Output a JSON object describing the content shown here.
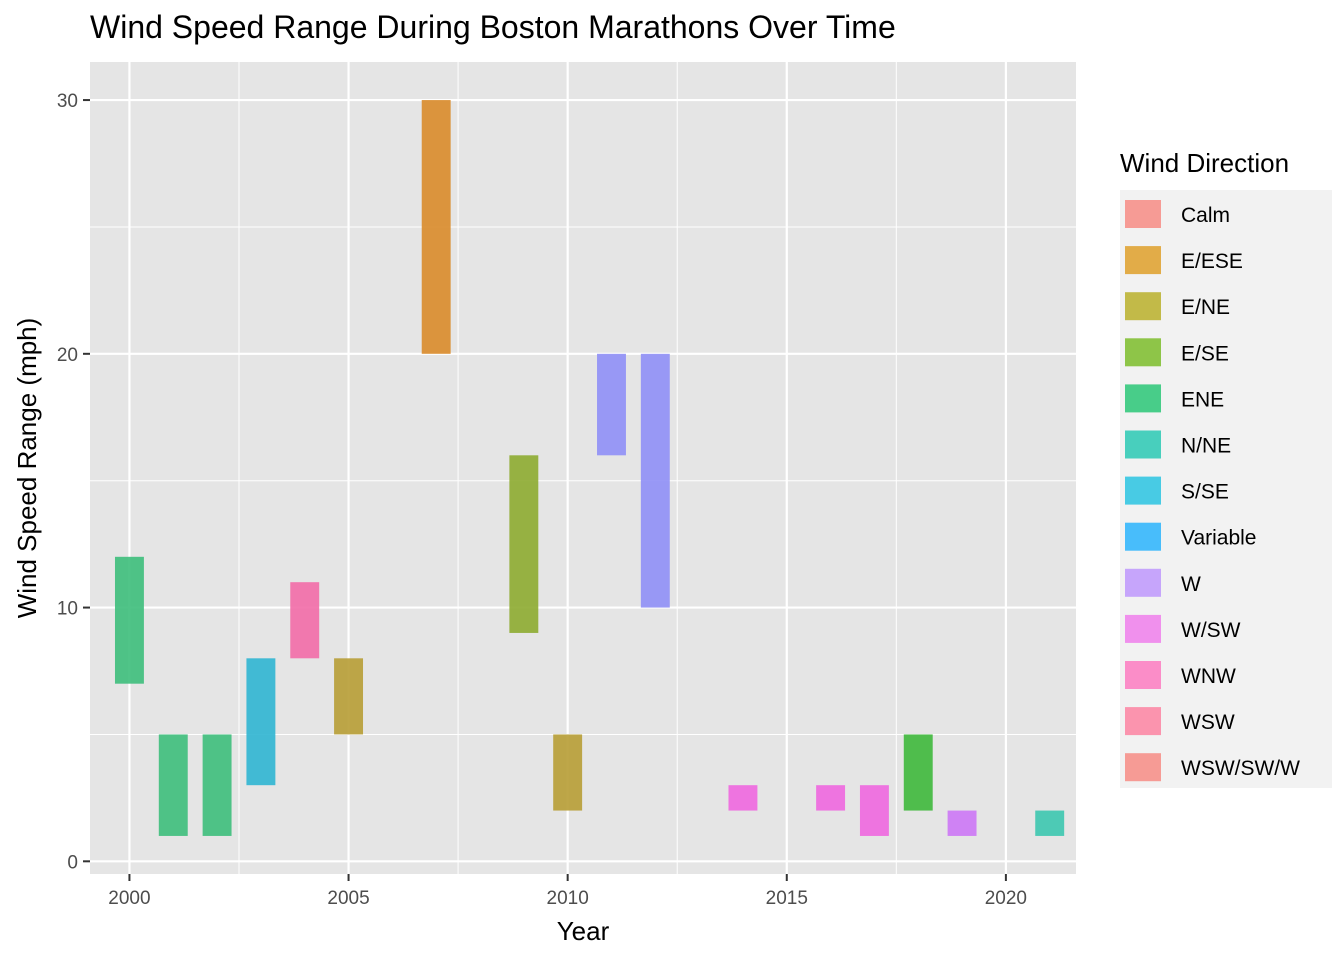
{
  "chart_data": {
    "type": "bar",
    "subtype": "floating-range",
    "title": "Wind Speed Range During Boston Marathons Over Time",
    "xlabel": "Year",
    "ylabel": "Wind Speed Range (mph)",
    "xlim": [
      1999.1,
      2021.6
    ],
    "ylim": [
      -0.5,
      31.5
    ],
    "xticks": [
      2000,
      2005,
      2010,
      2015,
      2020
    ],
    "yticks": [
      0,
      10,
      20,
      30
    ],
    "grid": true,
    "legend": {
      "title": "Wind Direction",
      "position": "right",
      "entries": [
        {
          "name": "Calm",
          "color": "#F8766D"
        },
        {
          "name": "E/ESE",
          "color": "#DB8E00"
        },
        {
          "name": "E/NE",
          "color": "#AEA200"
        },
        {
          "name": "E/SE",
          "color": "#64B200"
        },
        {
          "name": "ENE",
          "color": "#00BD5C"
        },
        {
          "name": "N/NE",
          "color": "#00C1A7"
        },
        {
          "name": "S/SE",
          "color": "#00BADE"
        },
        {
          "name": "Variable",
          "color": "#00A6FF"
        },
        {
          "name": "W",
          "color": "#B385FF"
        },
        {
          "name": "W/SW",
          "color": "#EF67EB"
        },
        {
          "name": "WNW",
          "color": "#FF63B6"
        },
        {
          "name": "WSW",
          "color": "#FF6C91"
        },
        {
          "name": "WSW/SW/W",
          "color": "#F8766D"
        }
      ]
    },
    "bars": [
      {
        "year": 2000,
        "low": 7,
        "high": 12,
        "direction": "N/NE",
        "color": "#3DBE7B"
      },
      {
        "year": 2001,
        "low": 1,
        "high": 5,
        "direction": "N/NE",
        "color": "#3DBE7B"
      },
      {
        "year": 2002,
        "low": 1,
        "high": 5,
        "direction": "N/NE",
        "color": "#3DBE7B"
      },
      {
        "year": 2003,
        "low": 3,
        "high": 8,
        "direction": "Variable",
        "color": "#2FB5D2"
      },
      {
        "year": 2004,
        "low": 8,
        "high": 11,
        "direction": "WSW/SW/W",
        "color": "#F26BA7"
      },
      {
        "year": 2005,
        "low": 5,
        "high": 8,
        "direction": "E/NE",
        "color": "#B79D35"
      },
      {
        "year": 2007,
        "low": 20,
        "high": 30,
        "direction": "E/ESE",
        "color": "#D98B2A"
      },
      {
        "year": 2009,
        "low": 9,
        "high": 16,
        "direction": "E/SE",
        "color": "#8DAB30"
      },
      {
        "year": 2010,
        "low": 2,
        "high": 5,
        "direction": "E/NE",
        "color": "#B79D35"
      },
      {
        "year": 2011,
        "low": 16,
        "high": 20,
        "direction": "W/SW",
        "color": "#8F8FF6"
      },
      {
        "year": 2012,
        "low": 10,
        "high": 20,
        "direction": "W/SW",
        "color": "#8F8FF6"
      },
      {
        "year": 2014,
        "low": 2,
        "high": 3,
        "direction": "WSW",
        "color": "#EE67DF"
      },
      {
        "year": 2016,
        "low": 2,
        "high": 3,
        "direction": "WSW",
        "color": "#EE67DF"
      },
      {
        "year": 2017,
        "low": 1,
        "high": 3,
        "direction": "WSW",
        "color": "#EE67DF"
      },
      {
        "year": 2018,
        "low": 2,
        "high": 5,
        "direction": "ENE",
        "color": "#3EB83B"
      },
      {
        "year": 2019,
        "low": 1,
        "high": 2,
        "direction": "WNW",
        "color": "#CC77F5"
      },
      {
        "year": 2021,
        "low": 1,
        "high": 2,
        "direction": "S/SE",
        "color": "#3CC6AF"
      }
    ]
  }
}
